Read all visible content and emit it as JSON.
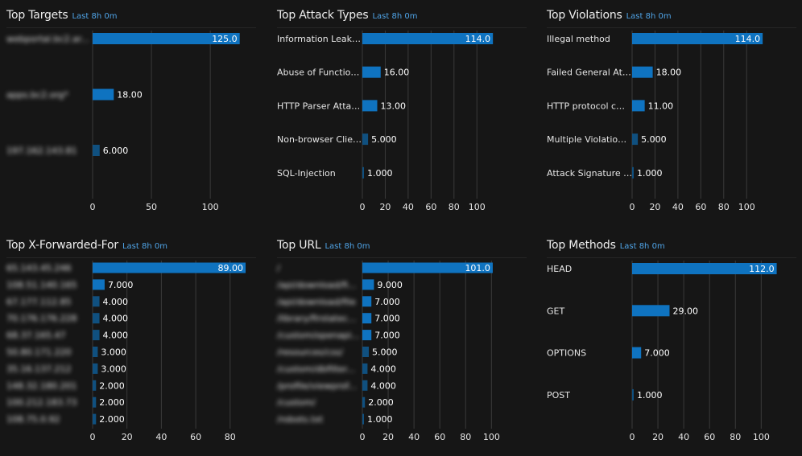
{
  "colors": {
    "bar": "#0f73c0",
    "bar_small": "#10507f",
    "grid": "#3a3a3a",
    "text": "#e6e6e6",
    "subtitle": "#4fa3e6"
  },
  "panels": [
    {
      "id": "top-targets",
      "title": "Top Targets",
      "subtitle": "Last 8h 0m",
      "blurred_labels": true,
      "chart_data": {
        "type": "bar",
        "orientation": "horizontal",
        "categories": [
          "webportal.bc2.ar...",
          "apps.bc2.org*",
          "197.162.143.81"
        ],
        "values": [
          125,
          18,
          6
        ],
        "value_labels": [
          "125.0",
          "18.00",
          "6.000"
        ],
        "xlim": [
          0,
          130
        ],
        "xticks": [
          0,
          50,
          100
        ]
      }
    },
    {
      "id": "top-attack-types",
      "title": "Top Attack Types",
      "subtitle": "Last 8h 0m",
      "blurred_labels": false,
      "chart_data": {
        "type": "bar",
        "orientation": "horizontal",
        "categories": [
          "Information Leak…",
          "Abuse of Functio…",
          "HTTP Parser Atta…",
          "Non-browser Clie…",
          "SQL-Injection"
        ],
        "values": [
          114,
          16,
          13,
          5,
          1
        ],
        "value_labels": [
          "114.0",
          "16.00",
          "13.00",
          "5.000",
          "1.000"
        ],
        "xlim": [
          0,
          116
        ],
        "xticks": [
          0,
          20,
          40,
          60,
          80,
          100
        ]
      }
    },
    {
      "id": "top-violations",
      "title": "Top Violations",
      "subtitle": "Last 8h 0m",
      "blurred_labels": false,
      "chart_data": {
        "type": "bar",
        "orientation": "horizontal",
        "categories": [
          "Illegal method",
          "Failed General At…",
          "HTTP protocol c…",
          "Multiple Violatio…",
          "Attack Signature …"
        ],
        "values": [
          114,
          18,
          11,
          5,
          1
        ],
        "value_labels": [
          "114.0",
          "18.00",
          "11.00",
          "5.000",
          "1.000"
        ],
        "xlim": [
          0,
          116
        ],
        "xticks": [
          0,
          20,
          40,
          60,
          80,
          100
        ]
      }
    },
    {
      "id": "top-x-forwarded-for",
      "title": "Top X-Forwarded-For",
      "subtitle": "Last 8h 0m",
      "blurred_labels": true,
      "chart_data": {
        "type": "bar",
        "orientation": "horizontal",
        "categories": [
          "65.143.45.246",
          "108.51.140.165",
          "67.177.112.85",
          "70.176.176.228",
          "68.37.165.47",
          "50.80.171.220",
          "35.16.137.212",
          "148.32.180.201",
          "100.212.183.73",
          "108.75.0.92"
        ],
        "values": [
          89,
          7,
          4,
          4,
          4,
          3,
          3,
          2,
          2,
          2
        ],
        "value_labels": [
          "89.00",
          "7.000",
          "4.000",
          "4.000",
          "4.000",
          "3.000",
          "3.000",
          "2.000",
          "2.000",
          "2.000"
        ],
        "xlim": [
          0,
          89
        ],
        "xticks": [
          0,
          20,
          40,
          60,
          80
        ]
      }
    },
    {
      "id": "top-url",
      "title": "Top URL",
      "subtitle": "Last 8h 0m",
      "blurred_labels": true,
      "chart_data": {
        "type": "bar",
        "orientation": "horizontal",
        "categories": [
          "/",
          "/api/download/fi...",
          "/api/download/file",
          "/library/firstatec...",
          "/custom/openapi...",
          "/resources/css/",
          "/custom/dbfilter...",
          "/profile/viewprof...",
          "/custom/",
          "/robots.txt"
        ],
        "values": [
          101,
          9,
          7,
          7,
          7,
          5,
          4,
          4,
          2,
          1
        ],
        "value_labels": [
          "101.0",
          "9.000",
          "7.000",
          "7.000",
          "7.000",
          "5.000",
          "4.000",
          "4.000",
          "2.000",
          "1.000"
        ],
        "xlim": [
          0,
          116
        ],
        "xticks": [
          0,
          20,
          40,
          60,
          80,
          100
        ]
      }
    },
    {
      "id": "top-methods",
      "title": "Top Methods",
      "subtitle": "Last 8h 0m",
      "blurred_labels": false,
      "chart_data": {
        "type": "bar",
        "orientation": "horizontal",
        "categories": [
          "HEAD",
          "GET",
          "OPTIONS",
          "POST"
        ],
        "values": [
          112,
          29,
          7,
          1
        ],
        "value_labels": [
          "112.0",
          "29.00",
          "7.000",
          "1.000"
        ],
        "xlim": [
          0,
          116
        ],
        "xticks": [
          0,
          20,
          40,
          60,
          80,
          100
        ]
      }
    }
  ]
}
